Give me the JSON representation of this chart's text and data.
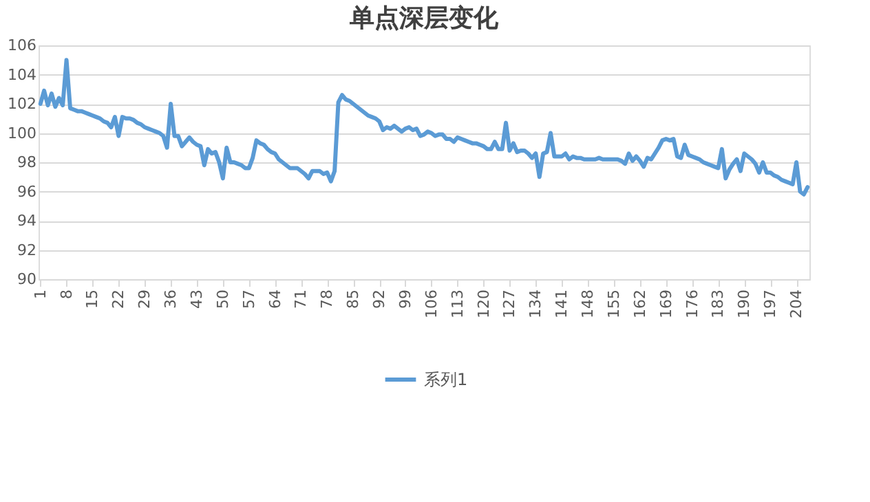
{
  "chart_data": {
    "type": "line",
    "title": "单点深层变化",
    "x": [
      1,
      2,
      3,
      4,
      5,
      6,
      7,
      8,
      9,
      10,
      11,
      12,
      13,
      14,
      15,
      16,
      17,
      18,
      19,
      20,
      21,
      22,
      23,
      24,
      25,
      26,
      27,
      28,
      29,
      30,
      31,
      32,
      33,
      34,
      35,
      36,
      37,
      38,
      39,
      40,
      41,
      42,
      43,
      44,
      45,
      46,
      47,
      48,
      49,
      50,
      51,
      52,
      53,
      54,
      55,
      56,
      57,
      58,
      59,
      60,
      61,
      62,
      63,
      64,
      65,
      66,
      67,
      68,
      69,
      70,
      71,
      72,
      73,
      74,
      75,
      76,
      77,
      78,
      79,
      80,
      81,
      82,
      83,
      84,
      85,
      86,
      87,
      88,
      89,
      90,
      91,
      92,
      93,
      94,
      95,
      96,
      97,
      98,
      99,
      100,
      101,
      102,
      103,
      104,
      105,
      106,
      107,
      108,
      109,
      110,
      111,
      112,
      113,
      114,
      115,
      116,
      117,
      118,
      119,
      120,
      121,
      122,
      123,
      124,
      125,
      126,
      127,
      128,
      129,
      130,
      131,
      132,
      133,
      134,
      135,
      136,
      137,
      138,
      139,
      140,
      141,
      142,
      143,
      144,
      145,
      146,
      147,
      148,
      149,
      150,
      151,
      152,
      153,
      154,
      155,
      156,
      157,
      158,
      159,
      160,
      161,
      162,
      163,
      164,
      165,
      166,
      167,
      168,
      169,
      170,
      171,
      172,
      173,
      174,
      175,
      176,
      177,
      178,
      179,
      180,
      181,
      182,
      183,
      184,
      185,
      186,
      187,
      188,
      189,
      190,
      191,
      192,
      193,
      194,
      195,
      196,
      197,
      198,
      199,
      200,
      201,
      202,
      203,
      204,
      205,
      206,
      207
    ],
    "series": [
      {
        "name": "系列1",
        "color": "#5b9bd5",
        "values": [
          102,
          102.9,
          101.9,
          102.7,
          101.8,
          102.4,
          101.9,
          105,
          101.7,
          101.6,
          101.5,
          101.5,
          101.4,
          101.3,
          101.2,
          101.1,
          101.0,
          100.8,
          100.7,
          100.4,
          101.1,
          99.8,
          101.1,
          101.0,
          101.0,
          100.9,
          100.7,
          100.6,
          100.4,
          100.3,
          100.2,
          100.1,
          100.0,
          99.8,
          99.0,
          102.0,
          99.8,
          99.8,
          99.1,
          99.4,
          99.7,
          99.4,
          99.2,
          99.1,
          97.8,
          98.9,
          98.6,
          98.7,
          98.0,
          96.9,
          99.0,
          98.0,
          98.0,
          97.9,
          97.8,
          97.6,
          97.6,
          98.3,
          99.5,
          99.3,
          99.2,
          98.9,
          98.7,
          98.6,
          98.2,
          98.0,
          97.8,
          97.6,
          97.6,
          97.6,
          97.4,
          97.2,
          96.9,
          97.4,
          97.4,
          97.4,
          97.2,
          97.3,
          96.7,
          97.4,
          102.1,
          102.6,
          102.3,
          102.2,
          102.0,
          101.8,
          101.6,
          101.4,
          101.2,
          101.1,
          101.0,
          100.8,
          100.2,
          100.4,
          100.3,
          100.5,
          100.3,
          100.1,
          100.3,
          100.4,
          100.2,
          100.3,
          99.8,
          99.9,
          100.1,
          100.0,
          99.8,
          99.9,
          99.9,
          99.6,
          99.6,
          99.4,
          99.7,
          99.6,
          99.5,
          99.4,
          99.3,
          99.3,
          99.2,
          99.1,
          98.9,
          98.9,
          99.4,
          98.9,
          98.9,
          100.7,
          98.8,
          99.3,
          98.7,
          98.8,
          98.8,
          98.6,
          98.3,
          98.6,
          97.0,
          98.6,
          98.7,
          100.0,
          98.4,
          98.4,
          98.4,
          98.6,
          98.2,
          98.4,
          98.3,
          98.3,
          98.2,
          98.2,
          98.2,
          98.2,
          98.3,
          98.2,
          98.2,
          98.2,
          98.2,
          98.2,
          98.1,
          97.9,
          98.6,
          98.1,
          98.4,
          98.1,
          97.7,
          98.3,
          98.2,
          98.6,
          99.0,
          99.5,
          99.6,
          99.5,
          99.6,
          98.4,
          98.3,
          99.2,
          98.5,
          98.4,
          98.3,
          98.2,
          98.0,
          97.9,
          97.8,
          97.7,
          97.6,
          98.9,
          96.9,
          97.5,
          97.9,
          98.2,
          97.4,
          98.6,
          98.4,
          98.2,
          97.9,
          97.3,
          98.0,
          97.3,
          97.3,
          97.1,
          97.0,
          96.8,
          96.7,
          96.6,
          96.5,
          98.0,
          96.0,
          95.8,
          96.3
        ]
      }
    ],
    "xlim": [
      0.5,
      207.5
    ],
    "xticks": [
      1,
      8,
      15,
      22,
      29,
      36,
      43,
      50,
      57,
      64,
      71,
      78,
      85,
      92,
      99,
      106,
      113,
      120,
      127,
      134,
      141,
      148,
      155,
      162,
      169,
      176,
      183,
      190,
      197,
      204
    ],
    "ylim": [
      90,
      106
    ],
    "yticks": [
      90,
      92,
      94,
      96,
      98,
      100,
      102,
      104,
      106
    ],
    "grid": "y",
    "legend": "bottom",
    "marker": "none",
    "line_style": "solid"
  }
}
